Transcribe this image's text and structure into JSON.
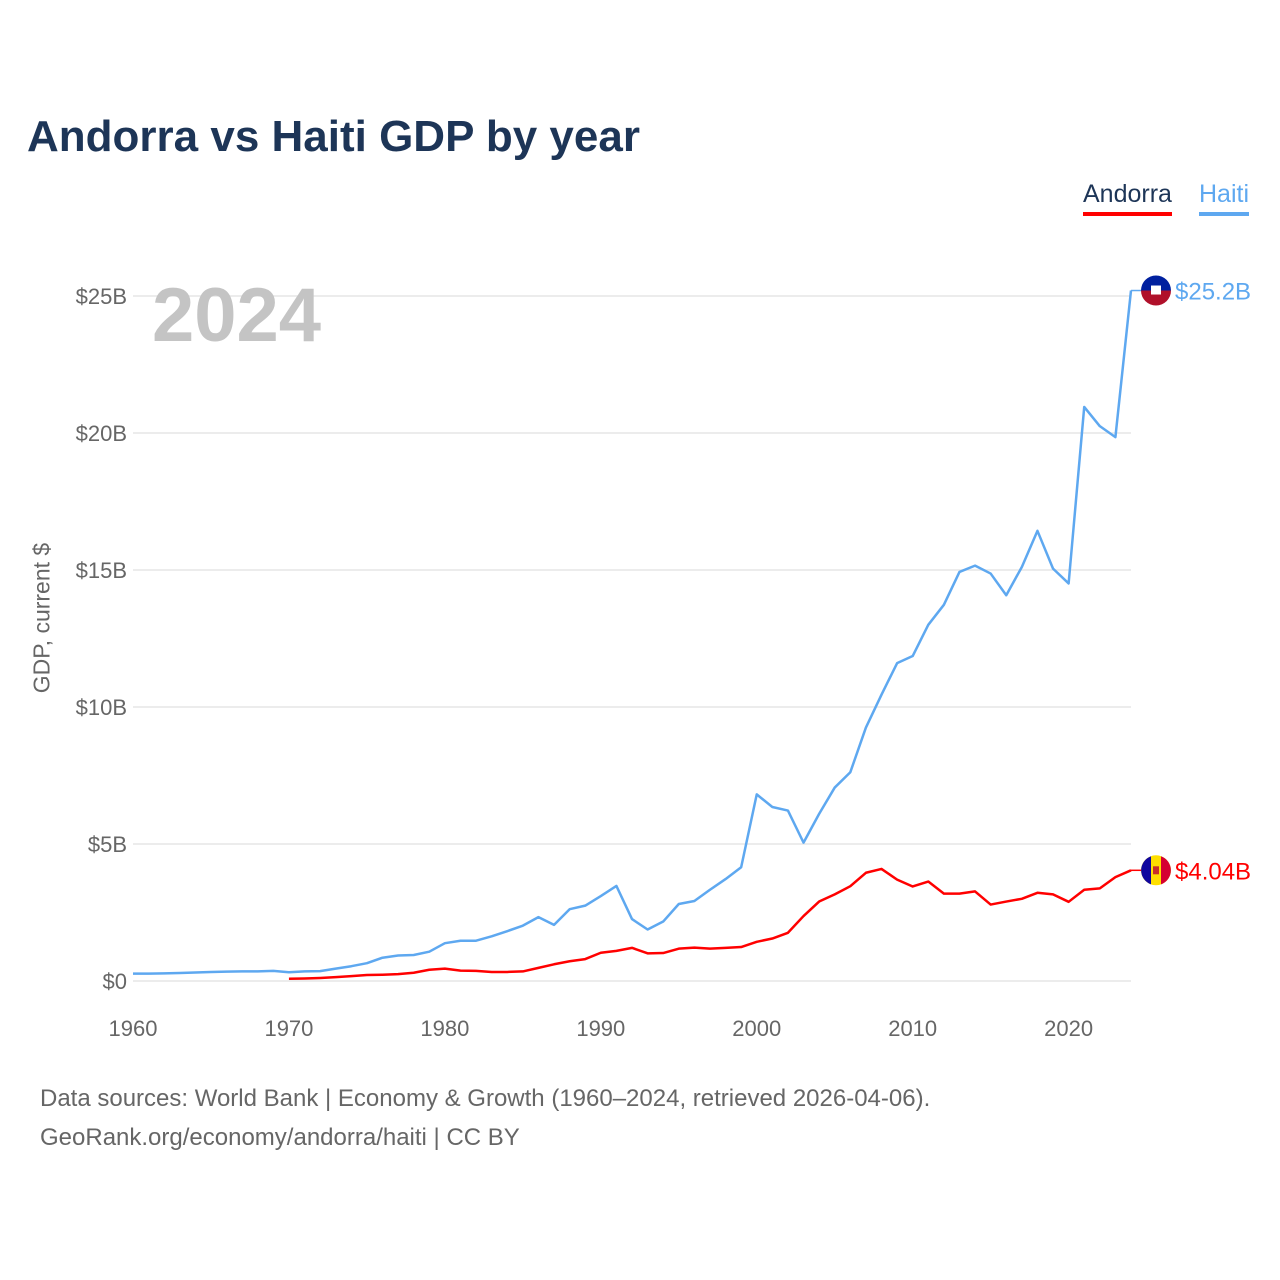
{
  "chart_data": {
    "type": "line",
    "title": "Andorra vs Haiti GDP by year",
    "ylabel": "GDP, current $",
    "xlabel": "",
    "xlim": [
      1960,
      2024
    ],
    "ylim": [
      0,
      25.2
    ],
    "x_ticks": [
      1960,
      1970,
      1980,
      1990,
      2000,
      2010,
      2020
    ],
    "x_tick_labels": [
      "1960",
      "1970",
      "1980",
      "1990",
      "2000",
      "2010",
      "2020"
    ],
    "y_ticks": [
      0,
      5,
      10,
      15,
      20,
      25
    ],
    "y_tick_labels": [
      "$0",
      "$5B",
      "$10B",
      "$15B",
      "$20B",
      "$25B"
    ],
    "grid": true,
    "legend_position": "top-right",
    "current_year": "2024",
    "series": [
      {
        "name": "Andorra",
        "color": "#ff0000",
        "start_year": 1970,
        "end_label": "$4.04B",
        "values": [
          0.08,
          0.09,
          0.11,
          0.14,
          0.18,
          0.22,
          0.23,
          0.25,
          0.3,
          0.41,
          0.45,
          0.38,
          0.37,
          0.33,
          0.33,
          0.35,
          0.48,
          0.61,
          0.72,
          0.8,
          1.03,
          1.1,
          1.21,
          1.01,
          1.02,
          1.18,
          1.22,
          1.18,
          1.21,
          1.24,
          1.43,
          1.55,
          1.76,
          2.37,
          2.9,
          3.16,
          3.46,
          3.95,
          4.09,
          3.7,
          3.45,
          3.63,
          3.19,
          3.19,
          3.27,
          2.79,
          2.9,
          3.0,
          3.22,
          3.16,
          2.89,
          3.33,
          3.38,
          3.79,
          4.04
        ]
      },
      {
        "name": "Haiti",
        "color": "#5ea8f0",
        "start_year": 1960,
        "end_label": "$25.2B",
        "values": [
          0.27,
          0.27,
          0.28,
          0.29,
          0.31,
          0.33,
          0.34,
          0.35,
          0.35,
          0.37,
          0.32,
          0.35,
          0.36,
          0.45,
          0.54,
          0.65,
          0.85,
          0.93,
          0.95,
          1.07,
          1.38,
          1.47,
          1.47,
          1.63,
          1.82,
          2.02,
          2.33,
          2.05,
          2.62,
          2.75,
          3.1,
          3.47,
          2.26,
          1.88,
          2.17,
          2.81,
          2.92,
          3.33,
          3.72,
          4.15,
          6.81,
          6.35,
          6.22,
          5.05,
          6.1,
          7.06,
          7.62,
          9.25,
          10.45,
          11.6,
          11.86,
          13.0,
          13.73,
          14.93,
          15.16,
          14.87,
          14.08,
          15.11,
          16.43,
          15.05,
          14.51,
          20.95,
          20.25,
          19.85,
          25.2
        ]
      }
    ]
  },
  "footer": {
    "line1": "Data sources: World Bank | Economy & Growth (1960–2024, retrieved 2026-04-06).",
    "line2": "GeoRank.org/economy/andorra/haiti | CC BY"
  }
}
